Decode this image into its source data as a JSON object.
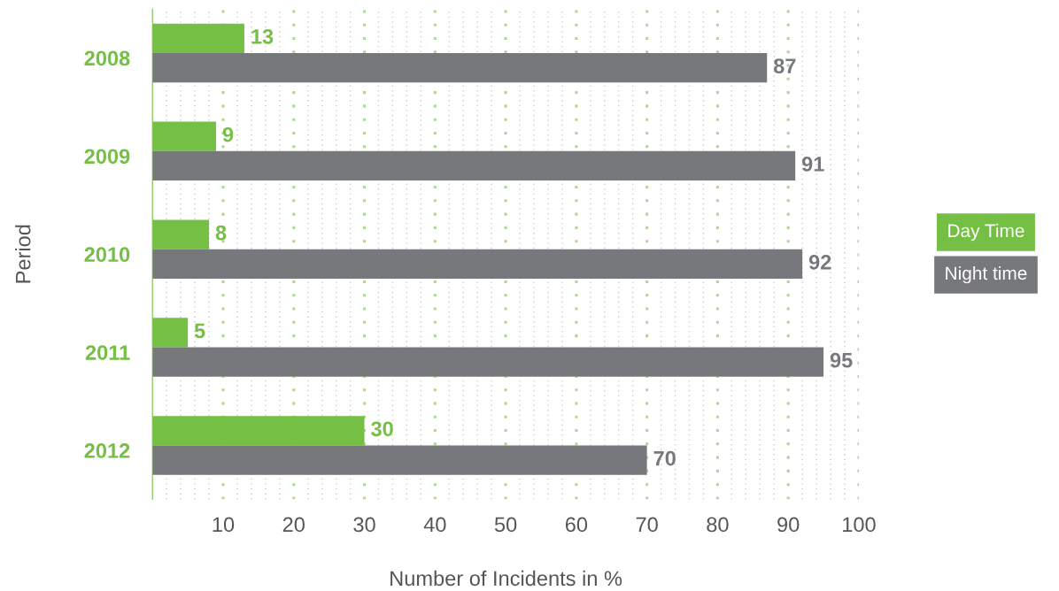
{
  "chart_data": {
    "type": "bar",
    "orientation": "horizontal",
    "xlabel": "Number of Incidents in %",
    "ylabel": "Period",
    "categories": [
      "2008",
      "2009",
      "2010",
      "2011",
      "2012"
    ],
    "series": [
      {
        "name": "Day Time",
        "color": "#74bf44",
        "values": [
          13,
          9,
          8,
          5,
          30
        ]
      },
      {
        "name": "Night time",
        "color": "#77787b",
        "values": [
          87,
          91,
          92,
          95,
          70
        ]
      }
    ],
    "xlim": [
      0,
      100
    ],
    "xticks": [
      {
        "value": 2,
        "label": null
      },
      {
        "value": 4,
        "label": null
      },
      {
        "value": 6,
        "label": null
      },
      {
        "value": 8,
        "label": null
      },
      10,
      {
        "value": 12,
        "label": null
      },
      {
        "value": 14,
        "label": null
      },
      {
        "value": 16,
        "label": null
      },
      {
        "value": 18,
        "label": null
      },
      20,
      {
        "value": 22,
        "label": null
      },
      {
        "value": 24,
        "label": null
      },
      {
        "value": 26,
        "label": null
      },
      {
        "value": 28,
        "label": null
      },
      30,
      {
        "value": 32,
        "label": null
      },
      {
        "value": 34,
        "label": null
      },
      {
        "value": 36,
        "label": null
      },
      {
        "value": 38,
        "label": null
      },
      40,
      {
        "value": 42,
        "label": null
      },
      {
        "value": 44,
        "label": null
      },
      {
        "value": 46,
        "label": null
      },
      {
        "value": 48,
        "label": null
      },
      50,
      {
        "value": 52,
        "label": null
      },
      {
        "value": 54,
        "label": null
      },
      {
        "value": 56,
        "label": null
      },
      {
        "value": 58,
        "label": null
      },
      60,
      {
        "value": 62,
        "label": null
      },
      {
        "value": 64,
        "label": null
      },
      {
        "value": 66,
        "label": null
      },
      {
        "value": 68,
        "label": null
      },
      70,
      {
        "value": 72,
        "label": null
      },
      {
        "value": 74,
        "label": null
      },
      {
        "value": 76,
        "label": null
      },
      {
        "value": 78,
        "label": null
      },
      80,
      {
        "value": 82,
        "label": null
      },
      {
        "value": 84,
        "label": null
      },
      {
        "value": 86,
        "label": null
      },
      {
        "value": 88,
        "label": null
      },
      90,
      {
        "value": 92,
        "label": null
      },
      {
        "value": 94,
        "label": null
      },
      {
        "value": 96,
        "label": null
      },
      {
        "value": 98,
        "label": null
      },
      100
    ],
    "grid": "x",
    "data_labels": true,
    "legend": "right"
  }
}
